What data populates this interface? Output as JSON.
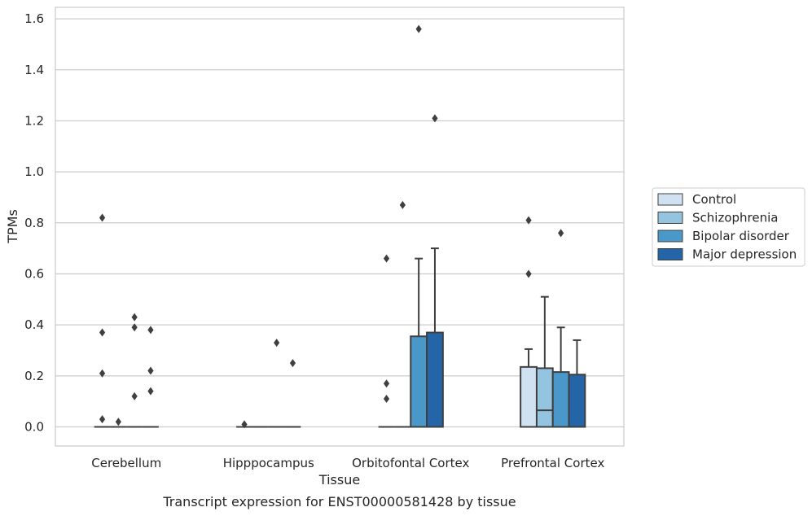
{
  "caption": "Transcript expression for ENST00000581428 by tissue",
  "chart_data": {
    "type": "box",
    "title": "",
    "xlabel": "Tissue",
    "ylabel": "TPMs",
    "ylim": [
      -0.075,
      1.645
    ],
    "yticks": [
      0.0,
      0.2,
      0.4,
      0.6,
      0.8,
      1.0,
      1.2,
      1.4,
      1.6
    ],
    "ytick_labels": [
      "0.0",
      "0.2",
      "0.4",
      "0.6",
      "0.8",
      "1.0",
      "1.2",
      "1.4",
      "1.6"
    ],
    "grid": "horizontal",
    "legend_position": "right",
    "categories": [
      "Cerebellum",
      "Hipppocampus",
      "Orbitofontal Cortex",
      "Prefrontal Cortex"
    ],
    "series": [
      {
        "name": "Control",
        "color": "#d0e1f2",
        "boxes": [
          {
            "q1": 0,
            "median": 0,
            "q3": 0,
            "whislo": 0,
            "whishi": 0,
            "fliers": [
              0.82,
              0.37,
              0.21,
              0.03
            ]
          },
          {
            "q1": 0,
            "median": 0,
            "q3": 0,
            "whislo": 0,
            "whishi": 0,
            "fliers": [
              0.01
            ]
          },
          {
            "q1": 0,
            "median": 0,
            "q3": 0,
            "whislo": 0,
            "whishi": 0,
            "fliers": [
              0.66,
              0.17,
              0.11
            ]
          },
          {
            "q1": 0,
            "median": 0,
            "q3": 0.235,
            "whislo": 0,
            "whishi": 0.305,
            "fliers": [
              0.81,
              0.6
            ]
          }
        ]
      },
      {
        "name": "Schizophrenia",
        "color": "#94c4df",
        "boxes": [
          {
            "q1": 0,
            "median": 0,
            "q3": 0,
            "whislo": 0,
            "whishi": 0,
            "fliers": [
              0.02
            ]
          },
          {
            "q1": 0,
            "median": 0,
            "q3": 0,
            "whislo": 0,
            "whishi": 0,
            "fliers": []
          },
          {
            "q1": 0,
            "median": 0,
            "q3": 0,
            "whislo": 0,
            "whishi": 0,
            "fliers": [
              0.87
            ]
          },
          {
            "q1": 0,
            "median": 0.065,
            "q3": 0.23,
            "whislo": 0,
            "whishi": 0.51,
            "fliers": []
          }
        ]
      },
      {
        "name": "Bipolar disorder",
        "color": "#4a98c9",
        "boxes": [
          {
            "q1": 0,
            "median": 0,
            "q3": 0,
            "whislo": 0,
            "whishi": 0,
            "fliers": [
              0.43,
              0.39,
              0.12
            ]
          },
          {
            "q1": 0,
            "median": 0,
            "q3": 0,
            "whislo": 0,
            "whishi": 0,
            "fliers": [
              0.33
            ]
          },
          {
            "q1": 0,
            "median": 0,
            "q3": 0.355,
            "whislo": 0,
            "whishi": 0.66,
            "fliers": [
              1.56
            ]
          },
          {
            "q1": 0,
            "median": 0,
            "q3": 0.215,
            "whislo": 0,
            "whishi": 0.39,
            "fliers": [
              0.76
            ]
          }
        ]
      },
      {
        "name": "Major depression",
        "color": "#2465a8",
        "boxes": [
          {
            "q1": 0,
            "median": 0,
            "q3": 0,
            "whislo": 0,
            "whishi": 0,
            "fliers": [
              0.38,
              0.22,
              0.14
            ]
          },
          {
            "q1": 0,
            "median": 0,
            "q3": 0,
            "whislo": 0,
            "whishi": 0,
            "fliers": [
              0.25
            ]
          },
          {
            "q1": 0,
            "median": 0,
            "q3": 0.37,
            "whislo": 0,
            "whishi": 0.7,
            "fliers": [
              1.21
            ]
          },
          {
            "q1": 0,
            "median": 0,
            "q3": 0.205,
            "whislo": 0,
            "whishi": 0.34,
            "fliers": []
          }
        ]
      }
    ]
  }
}
